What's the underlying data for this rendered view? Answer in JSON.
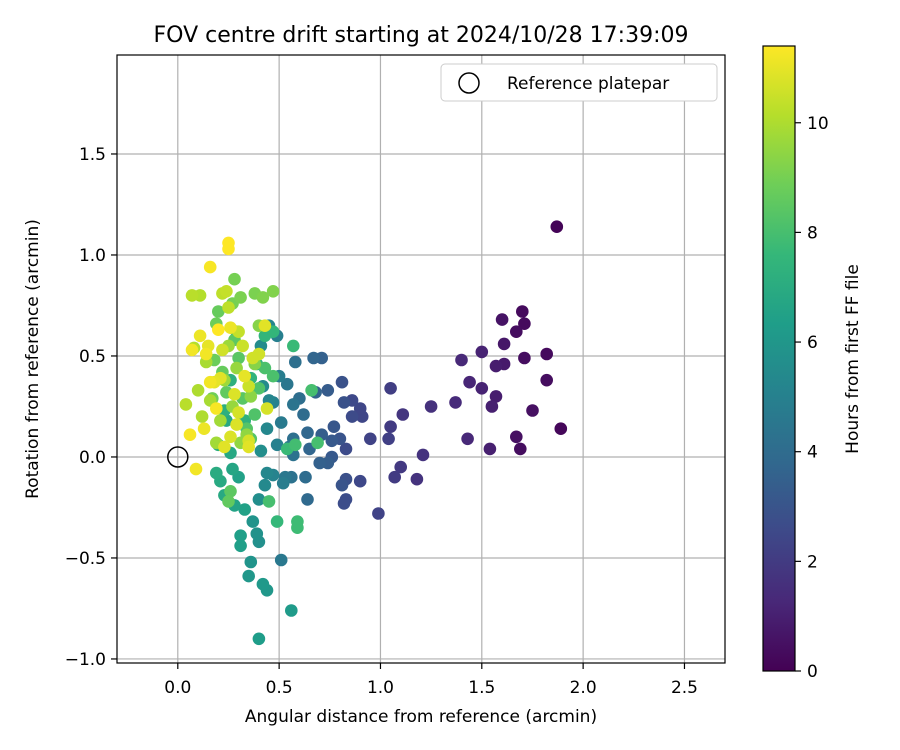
{
  "chart_data": {
    "type": "scatter",
    "title": "FOV centre drift starting at 2024/10/28 17:39:09",
    "xlabel": "Angular distance from reference (arcmin)",
    "ylabel": "Rotation from reference (arcmin)",
    "xlim": [
      -0.3,
      2.7
    ],
    "ylim": [
      -1.02,
      1.99
    ],
    "xticks": [
      0.0,
      0.5,
      1.0,
      1.5,
      2.0,
      2.5
    ],
    "xtick_labels": [
      "0.0",
      "0.5",
      "1.0",
      "1.5",
      "2.0",
      "2.5"
    ],
    "yticks": [
      -1.0,
      -0.5,
      0.0,
      0.5,
      1.0,
      1.5
    ],
    "ytick_labels": [
      "−1.0",
      "−0.5",
      "0.0",
      "0.5",
      "1.0",
      "1.5"
    ],
    "grid": true,
    "legend": {
      "position": "top-right",
      "entries": [
        "Reference platepar"
      ]
    },
    "reference_point": {
      "x": 0.0,
      "y": 0.0,
      "label": "Reference platepar"
    },
    "colorbar": {
      "label": "Hours from first FF file",
      "range": [
        0,
        11.4
      ],
      "ticks": [
        0,
        2,
        4,
        6,
        8,
        10
      ],
      "tick_labels": [
        "0",
        "2",
        "4",
        "6",
        "8",
        "10"
      ],
      "colormap": "viridis"
    },
    "colormap_stops": [
      "#440154",
      "#482878",
      "#3e4989",
      "#31688e",
      "#26828e",
      "#1f9e89",
      "#35b779",
      "#6ece58",
      "#b5de2b",
      "#fde725"
    ],
    "series": [
      {
        "points": [
          [
            1.87,
            1.14,
            0.1
          ],
          [
            1.89,
            0.14,
            0.2
          ],
          [
            1.7,
            0.72,
            0.3
          ],
          [
            1.71,
            0.66,
            0.3
          ],
          [
            1.67,
            0.62,
            0.4
          ],
          [
            1.71,
            0.49,
            0.4
          ],
          [
            1.82,
            0.51,
            0.3
          ],
          [
            1.82,
            0.38,
            0.4
          ],
          [
            1.75,
            0.23,
            0.5
          ],
          [
            1.67,
            0.1,
            0.5
          ],
          [
            1.69,
            0.04,
            0.4
          ],
          [
            1.6,
            0.68,
            0.6
          ],
          [
            1.61,
            0.56,
            0.7
          ],
          [
            1.61,
            0.46,
            0.8
          ],
          [
            1.57,
            0.45,
            0.9
          ],
          [
            1.57,
            0.3,
            0.9
          ],
          [
            1.55,
            0.25,
            1.0
          ],
          [
            1.54,
            0.04,
            1.0
          ],
          [
            1.5,
            0.52,
            1.1
          ],
          [
            1.5,
            0.34,
            1.1
          ],
          [
            1.44,
            0.37,
            1.2
          ],
          [
            1.4,
            0.48,
            1.3
          ],
          [
            1.43,
            0.09,
            1.3
          ],
          [
            1.37,
            0.27,
            1.4
          ],
          [
            1.25,
            0.25,
            1.6
          ],
          [
            1.21,
            0.01,
            1.7
          ],
          [
            1.18,
            -0.11,
            1.7
          ],
          [
            1.11,
            0.21,
            1.8
          ],
          [
            1.1,
            -0.05,
            1.9
          ],
          [
            1.07,
            -0.1,
            2.0
          ],
          [
            1.05,
            0.15,
            2.0
          ],
          [
            1.05,
            0.34,
            2.1
          ],
          [
            1.04,
            0.09,
            2.2
          ],
          [
            0.99,
            -0.28,
            2.3
          ],
          [
            0.95,
            0.09,
            2.3
          ],
          [
            0.91,
            0.2,
            2.4
          ],
          [
            0.9,
            0.24,
            2.4
          ],
          [
            0.9,
            -0.12,
            2.5
          ],
          [
            0.86,
            0.28,
            2.5
          ],
          [
            0.86,
            0.2,
            2.6
          ],
          [
            0.83,
            0.04,
            2.6
          ],
          [
            0.83,
            -0.21,
            2.7
          ],
          [
            0.82,
            -0.23,
            2.7
          ],
          [
            0.83,
            -0.11,
            2.8
          ],
          [
            0.81,
            0.37,
            2.9
          ],
          [
            0.82,
            0.27,
            2.9
          ],
          [
            0.8,
            0.09,
            3.0
          ],
          [
            0.81,
            -0.14,
            3.0
          ],
          [
            0.77,
            0.15,
            3.1
          ],
          [
            0.76,
            0.08,
            3.2
          ],
          [
            0.76,
            0.0,
            3.2
          ],
          [
            0.74,
            0.33,
            3.3
          ],
          [
            0.74,
            -0.03,
            3.4
          ],
          [
            0.71,
            0.11,
            3.4
          ],
          [
            0.7,
            -0.03,
            3.5
          ],
          [
            0.71,
            0.49,
            3.5
          ],
          [
            0.68,
            0.32,
            3.6
          ],
          [
            0.67,
            0.49,
            3.7
          ],
          [
            0.65,
            0.04,
            3.7
          ],
          [
            0.64,
            0.12,
            3.8
          ],
          [
            0.64,
            -0.21,
            3.9
          ],
          [
            0.63,
            -0.1,
            4.0
          ],
          [
            0.62,
            0.21,
            4.0
          ],
          [
            0.6,
            0.29,
            4.1
          ],
          [
            0.58,
            0.47,
            4.2
          ],
          [
            0.57,
            0.09,
            4.2
          ],
          [
            0.57,
            0.01,
            4.3
          ],
          [
            0.56,
            -0.1,
            4.3
          ],
          [
            0.57,
            0.26,
            4.4
          ],
          [
            0.55,
            0.05,
            4.5
          ],
          [
            0.54,
            0.36,
            4.5
          ],
          [
            0.53,
            -0.1,
            4.6
          ],
          [
            0.51,
            -0.51,
            4.6
          ],
          [
            0.51,
            0.17,
            4.7
          ],
          [
            0.52,
            -0.13,
            4.8
          ],
          [
            0.5,
            0.4,
            4.8
          ],
          [
            0.49,
            0.6,
            4.9
          ],
          [
            0.49,
            0.06,
            5.0
          ],
          [
            0.47,
            0.27,
            5.0
          ],
          [
            0.47,
            -0.09,
            5.1
          ],
          [
            0.45,
            0.65,
            5.2
          ],
          [
            0.45,
            0.28,
            5.2
          ],
          [
            0.44,
            -0.08,
            5.3
          ],
          [
            0.44,
            0.14,
            5.3
          ],
          [
            0.43,
            -0.14,
            5.4
          ],
          [
            0.42,
            0.35,
            5.5
          ],
          [
            0.41,
            0.55,
            5.5
          ],
          [
            0.41,
            0.03,
            5.6
          ],
          [
            0.4,
            -0.21,
            5.6
          ],
          [
            0.4,
            -0.42,
            5.7
          ],
          [
            0.39,
            -0.38,
            5.8
          ],
          [
            0.37,
            -0.32,
            5.9
          ],
          [
            0.36,
            -0.52,
            5.9
          ],
          [
            0.35,
            -0.59,
            6.0
          ],
          [
            0.44,
            -0.66,
            6.0
          ],
          [
            0.42,
            -0.63,
            6.1
          ],
          [
            0.56,
            -0.76,
            6.2
          ],
          [
            0.4,
            -0.9,
            6.3
          ],
          [
            0.31,
            -0.44,
            6.4
          ],
          [
            0.31,
            -0.39,
            6.4
          ],
          [
            0.33,
            -0.26,
            6.5
          ],
          [
            0.3,
            -0.1,
            6.5
          ],
          [
            0.28,
            -0.24,
            6.6
          ],
          [
            0.27,
            -0.06,
            6.7
          ],
          [
            0.26,
            0.02,
            6.8
          ],
          [
            0.24,
            0.18,
            6.8
          ],
          [
            0.23,
            -0.19,
            6.9
          ],
          [
            0.21,
            -0.12,
            6.9
          ],
          [
            0.19,
            -0.08,
            7.0
          ],
          [
            0.2,
            0.06,
            7.1
          ],
          [
            0.23,
            0.23,
            7.2
          ],
          [
            0.26,
            0.38,
            7.2
          ],
          [
            0.29,
            0.62,
            7.3
          ],
          [
            0.33,
            0.18,
            7.3
          ],
          [
            0.36,
            0.39,
            7.4
          ],
          [
            0.39,
            0.46,
            7.4
          ],
          [
            0.43,
            0.6,
            7.5
          ],
          [
            0.47,
            0.62,
            7.5
          ],
          [
            0.49,
            -0.32,
            7.6
          ],
          [
            0.54,
            0.04,
            7.7
          ],
          [
            0.57,
            0.55,
            7.7
          ],
          [
            0.59,
            -0.35,
            7.8
          ],
          [
            0.59,
            -0.32,
            7.8
          ],
          [
            0.58,
            0.06,
            7.9
          ],
          [
            0.69,
            0.07,
            8.0
          ],
          [
            0.66,
            0.33,
            8.0
          ],
          [
            0.45,
            -0.22,
            8.0
          ],
          [
            0.47,
            0.4,
            8.1
          ],
          [
            0.43,
            0.44,
            8.1
          ],
          [
            0.4,
            0.34,
            8.2
          ],
          [
            0.38,
            0.21,
            8.2
          ],
          [
            0.36,
            0.09,
            8.3
          ],
          [
            0.34,
            0.14,
            8.3
          ],
          [
            0.32,
            0.29,
            8.4
          ],
          [
            0.3,
            0.49,
            8.4
          ],
          [
            0.28,
            0.58,
            8.5
          ],
          [
            0.26,
            -0.17,
            8.5
          ],
          [
            0.25,
            -0.22,
            8.6
          ],
          [
            0.24,
            0.32,
            8.6
          ],
          [
            0.22,
            0.42,
            8.7
          ],
          [
            0.2,
            0.72,
            8.7
          ],
          [
            0.19,
            0.66,
            8.8
          ],
          [
            0.18,
            0.48,
            8.8
          ],
          [
            0.17,
            0.29,
            8.9
          ],
          [
            0.28,
            0.88,
            9.0
          ],
          [
            0.27,
            0.76,
            9.0
          ],
          [
            0.31,
            0.79,
            9.1
          ],
          [
            0.38,
            0.81,
            9.1
          ],
          [
            0.42,
            0.79,
            9.2
          ],
          [
            0.47,
            0.82,
            9.2
          ],
          [
            0.4,
            0.65,
            9.3
          ],
          [
            0.38,
            0.46,
            9.3
          ],
          [
            0.36,
            0.3,
            9.4
          ],
          [
            0.34,
            0.11,
            9.5
          ],
          [
            0.31,
            0.07,
            9.5
          ],
          [
            0.29,
            0.44,
            9.6
          ],
          [
            0.27,
            0.25,
            9.6
          ],
          [
            0.25,
            0.55,
            9.7
          ],
          [
            0.23,
            0.38,
            9.7
          ],
          [
            0.21,
            0.18,
            9.8
          ],
          [
            0.19,
            0.07,
            9.8
          ],
          [
            0.16,
            0.28,
            9.9
          ],
          [
            0.14,
            0.47,
            9.9
          ],
          [
            0.12,
            0.2,
            10.0
          ],
          [
            0.1,
            0.33,
            10.0
          ],
          [
            0.08,
            0.54,
            10.1
          ],
          [
            0.11,
            0.8,
            10.1
          ],
          [
            0.07,
            0.8,
            10.2
          ],
          [
            0.04,
            0.26,
            10.2
          ],
          [
            0.22,
            0.81,
            10.3
          ],
          [
            0.25,
            0.74,
            10.3
          ],
          [
            0.24,
            0.82,
            10.4
          ],
          [
            0.3,
            0.62,
            10.4
          ],
          [
            0.32,
            0.55,
            10.5
          ],
          [
            0.35,
            0.35,
            10.5
          ],
          [
            0.37,
            0.49,
            10.6
          ],
          [
            0.4,
            0.51,
            10.6
          ],
          [
            0.44,
            0.24,
            10.7
          ],
          [
            0.35,
            0.08,
            10.7
          ],
          [
            0.29,
            0.16,
            10.8
          ],
          [
            0.26,
            0.1,
            10.8
          ],
          [
            0.23,
            0.05,
            10.9
          ],
          [
            0.21,
            0.39,
            10.9
          ],
          [
            0.18,
            0.37,
            11.0
          ],
          [
            0.15,
            0.55,
            11.0
          ],
          [
            0.13,
            0.14,
            11.1
          ],
          [
            0.11,
            0.6,
            11.1
          ],
          [
            0.09,
            -0.06,
            11.2
          ],
          [
            0.07,
            0.53,
            11.2
          ],
          [
            0.06,
            0.11,
            11.3
          ],
          [
            0.16,
            0.94,
            11.3
          ],
          [
            0.25,
            1.03,
            11.4
          ],
          [
            0.25,
            1.06,
            11.4
          ],
          [
            0.2,
            0.63,
            11.4
          ],
          [
            0.19,
            0.24,
            11.3
          ],
          [
            0.16,
            0.37,
            11.2
          ],
          [
            0.14,
            0.51,
            11.2
          ],
          [
            0.26,
            0.64,
            11.1
          ],
          [
            0.33,
            0.4,
            11.0
          ],
          [
            0.35,
            0.05,
            10.9
          ],
          [
            0.43,
            0.65,
            10.9
          ],
          [
            0.28,
            0.31,
            10.8
          ],
          [
            0.3,
            0.22,
            10.7
          ],
          [
            0.22,
            0.53,
            10.6
          ]
        ]
      }
    ]
  }
}
